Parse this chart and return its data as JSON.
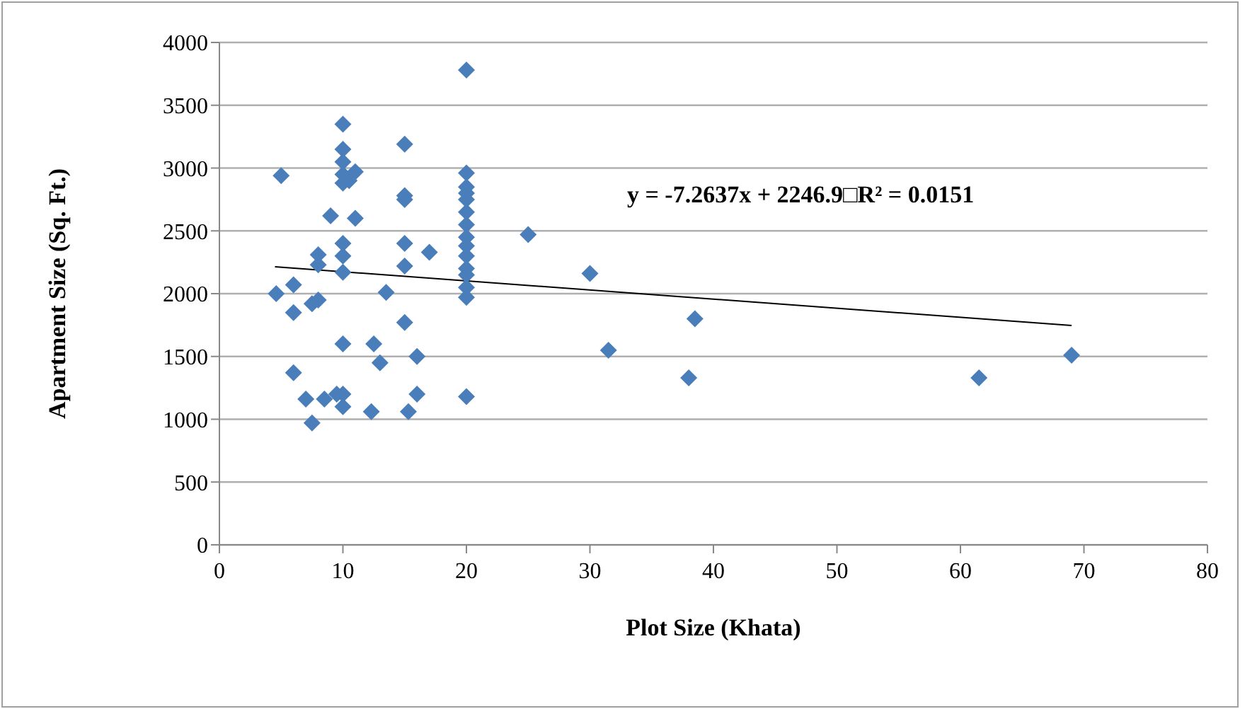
{
  "chart_data": {
    "type": "scatter",
    "xlabel": "Plot Size (Khata)",
    "ylabel": "Apartment Size (Sq. Ft.)",
    "xlim": [
      0,
      80
    ],
    "xticks": [
      0,
      10,
      20,
      30,
      40,
      50,
      60,
      70,
      80
    ],
    "ylim": [
      0,
      4000
    ],
    "yticks": [
      0,
      500,
      1000,
      1500,
      2000,
      2500,
      3000,
      3500,
      4000
    ],
    "grid": "y",
    "annotations": [
      "y = -7.2637x + 2246.9□R² = 0.0151"
    ],
    "series": [
      {
        "marker": "diamond",
        "color": "#4a7ebb",
        "x": [
          4.6,
          5,
          6,
          6,
          6,
          7,
          7.5,
          7.5,
          8,
          8,
          8,
          8.5,
          9,
          9.5,
          10,
          10,
          10,
          10,
          10,
          10,
          10,
          10,
          10,
          10,
          10,
          10.5,
          11,
          11,
          12.3,
          12.5,
          13,
          13.5,
          15,
          15,
          15,
          15,
          15,
          15,
          15.3,
          16,
          16,
          17,
          20,
          20,
          20,
          20,
          20,
          20,
          20,
          20,
          20,
          20,
          20,
          20,
          20,
          20,
          20,
          25,
          30,
          31.5,
          38,
          38.5,
          61.5,
          69
        ],
        "values": [
          2000,
          2940,
          2070,
          1850,
          1370,
          1160,
          970,
          1920,
          1950,
          2230,
          2310,
          1160,
          2620,
          1200,
          2400,
          2300,
          2170,
          1600,
          1200,
          1100,
          3350,
          3150,
          3050,
          2950,
          2880,
          2900,
          2970,
          2600,
          1060,
          1600,
          1450,
          2010,
          3190,
          2780,
          2750,
          2400,
          2220,
          1770,
          1060,
          1500,
          1200,
          2330,
          3780,
          2960,
          2850,
          2800,
          2750,
          2650,
          2550,
          2450,
          2380,
          2300,
          2200,
          2150,
          2050,
          1970,
          1180,
          2470,
          2160,
          1550,
          1330,
          1800,
          1330,
          1510
        ]
      },
      {
        "type": "line",
        "marker": "none",
        "color": "#000000",
        "x": [
          4.5,
          69
        ],
        "values": [
          2214,
          1746
        ]
      }
    ]
  }
}
